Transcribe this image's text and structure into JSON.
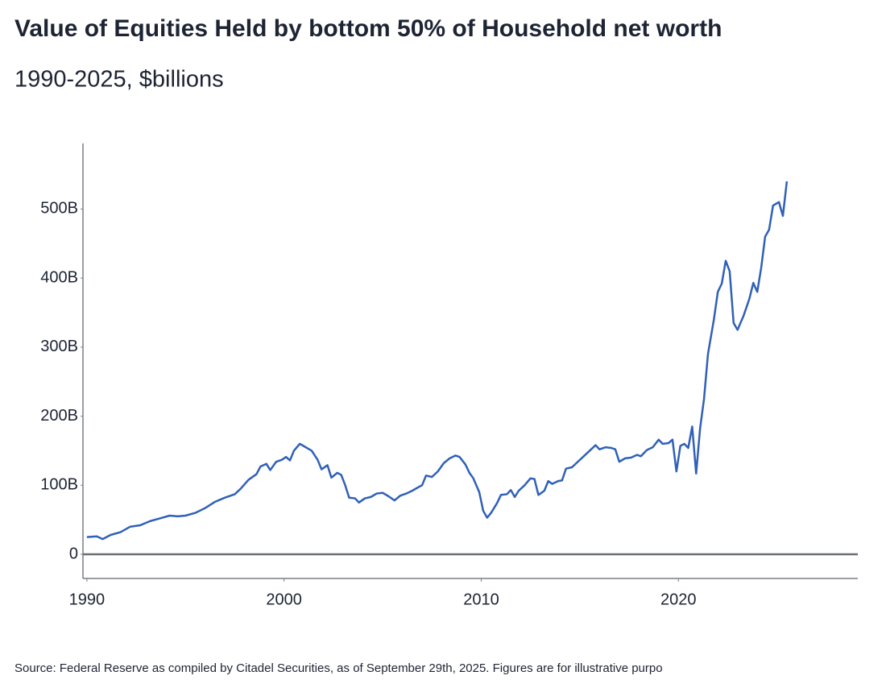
{
  "chart_data": {
    "type": "line",
    "title": "Value of Equities Held by bottom 50% of Household net worth",
    "subtitle": "1990-2025, $billions",
    "source": "Source: Federal Reserve as compiled by Citadel Securities, as of September 29th, 2025. Figures are for illustrative purpo",
    "color": "#3060b8",
    "x": [
      1990.0,
      1990.5,
      1990.8,
      1991.2,
      1991.7,
      1992.2,
      1992.7,
      1993.2,
      1993.7,
      1994.2,
      1994.6,
      1995.0,
      1995.5,
      1996.0,
      1996.5,
      1997.0,
      1997.5,
      1997.8,
      1998.2,
      1998.6,
      1998.8,
      1999.1,
      1999.3,
      1999.6,
      1999.9,
      2000.1,
      2000.3,
      2000.5,
      2000.8,
      2001.1,
      2001.4,
      2001.7,
      2001.9,
      2002.2,
      2002.4,
      2002.7,
      2002.9,
      2003.1,
      2003.3,
      2003.6,
      2003.8,
      2004.1,
      2004.4,
      2004.7,
      2005.0,
      2005.3,
      2005.6,
      2005.9,
      2006.2,
      2006.5,
      2006.8,
      2007.0,
      2007.2,
      2007.5,
      2007.8,
      2008.1,
      2008.4,
      2008.7,
      2008.9,
      2009.2,
      2009.4,
      2009.6,
      2009.9,
      2010.1,
      2010.3,
      2010.5,
      2010.8,
      2011.0,
      2011.3,
      2011.5,
      2011.7,
      2011.9,
      2012.2,
      2012.5,
      2012.7,
      2012.9,
      2013.2,
      2013.4,
      2013.6,
      2013.9,
      2014.1,
      2014.3,
      2014.6,
      2014.9,
      2015.2,
      2015.5,
      2015.8,
      2016.0,
      2016.3,
      2016.6,
      2016.8,
      2017.0,
      2017.3,
      2017.6,
      2017.9,
      2018.1,
      2018.4,
      2018.7,
      2019.0,
      2019.2,
      2019.5,
      2019.7,
      2019.9,
      2020.1,
      2020.3,
      2020.5,
      2020.7,
      2020.9,
      2021.1,
      2021.3,
      2021.5,
      2021.8,
      2022.0,
      2022.2,
      2022.4,
      2022.6,
      2022.8,
      2023.0,
      2023.3,
      2023.6,
      2023.8,
      2024.0,
      2024.2,
      2024.4,
      2024.6,
      2024.8,
      2025.1,
      2025.3,
      2025.5
    ],
    "values": [
      25,
      26,
      22,
      28,
      32,
      40,
      42,
      48,
      52,
      56,
      55,
      56,
      60,
      67,
      76,
      82,
      87,
      95,
      108,
      116,
      127,
      131,
      122,
      134,
      137,
      141,
      136,
      150,
      160,
      155,
      150,
      137,
      123,
      129,
      111,
      118,
      115,
      100,
      82,
      81,
      75,
      81,
      83,
      88,
      89,
      84,
      78,
      85,
      88,
      92,
      97,
      100,
      114,
      112,
      120,
      132,
      139,
      143,
      141,
      130,
      118,
      110,
      90,
      63,
      53,
      60,
      74,
      86,
      87,
      93,
      83,
      92,
      100,
      110,
      109,
      86,
      92,
      106,
      102,
      106,
      107,
      124,
      126,
      134,
      142,
      150,
      158,
      152,
      155,
      154,
      152,
      134,
      139,
      140,
      144,
      142,
      151,
      155,
      166,
      160,
      161,
      166,
      120,
      157,
      160,
      154,
      185,
      117,
      182,
      225,
      290,
      340,
      380,
      392,
      425,
      410,
      335,
      325,
      345,
      370,
      393,
      380,
      415,
      460,
      470,
      505,
      510,
      490,
      540
    ],
    "xlim": [
      1989.8,
      2029.1
    ],
    "ylim": [
      -35,
      595
    ],
    "xticks": [
      1990,
      2000,
      2010,
      2020
    ],
    "yticks": [
      0,
      {
        "value": 100,
        "label": "100B"
      },
      {
        "value": 200,
        "label": "200B"
      },
      {
        "value": 300,
        "label": "300B"
      },
      {
        "value": 400,
        "label": "400B"
      },
      {
        "value": 500,
        "label": "500B"
      }
    ]
  }
}
